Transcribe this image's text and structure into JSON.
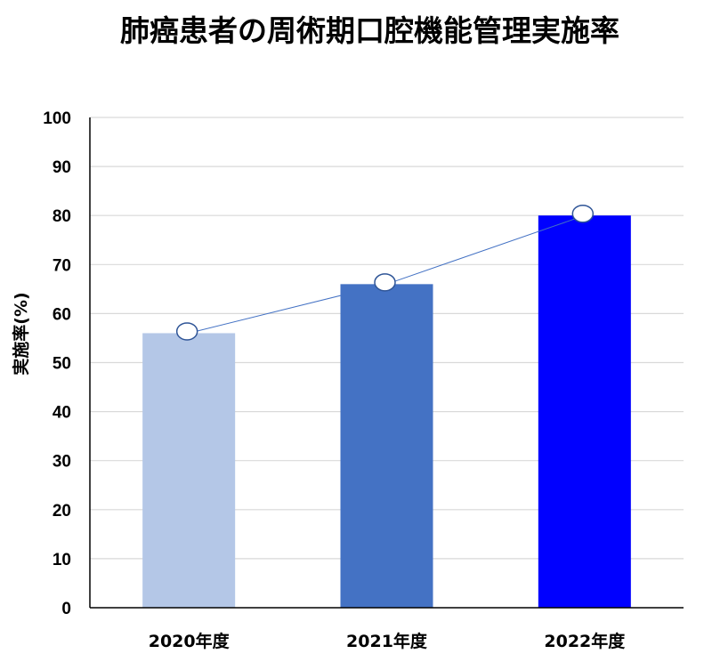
{
  "chart_data": {
    "type": "bar",
    "title": "肺癌患者の周術期口腔機能管理実施率",
    "ylabel": "実施率(%)",
    "xlabel": "",
    "categories": [
      "2020年度",
      "2021年度",
      "2022年度"
    ],
    "values": [
      56,
      66,
      80
    ],
    "bar_colors": [
      "#b4c7e7",
      "#4472c4",
      "#0000ff"
    ],
    "trend_line": {
      "values": [
        56,
        66,
        80
      ],
      "line_color": "#4472c4",
      "marker_fill": "#ffffff",
      "marker_stroke": "#2f5597"
    },
    "ylim": [
      0,
      100
    ],
    "yticks": [
      "0",
      "10",
      "20",
      "30",
      "40",
      "50",
      "60",
      "70",
      "80",
      "90",
      "100"
    ],
    "grid": true,
    "legend": "none"
  }
}
